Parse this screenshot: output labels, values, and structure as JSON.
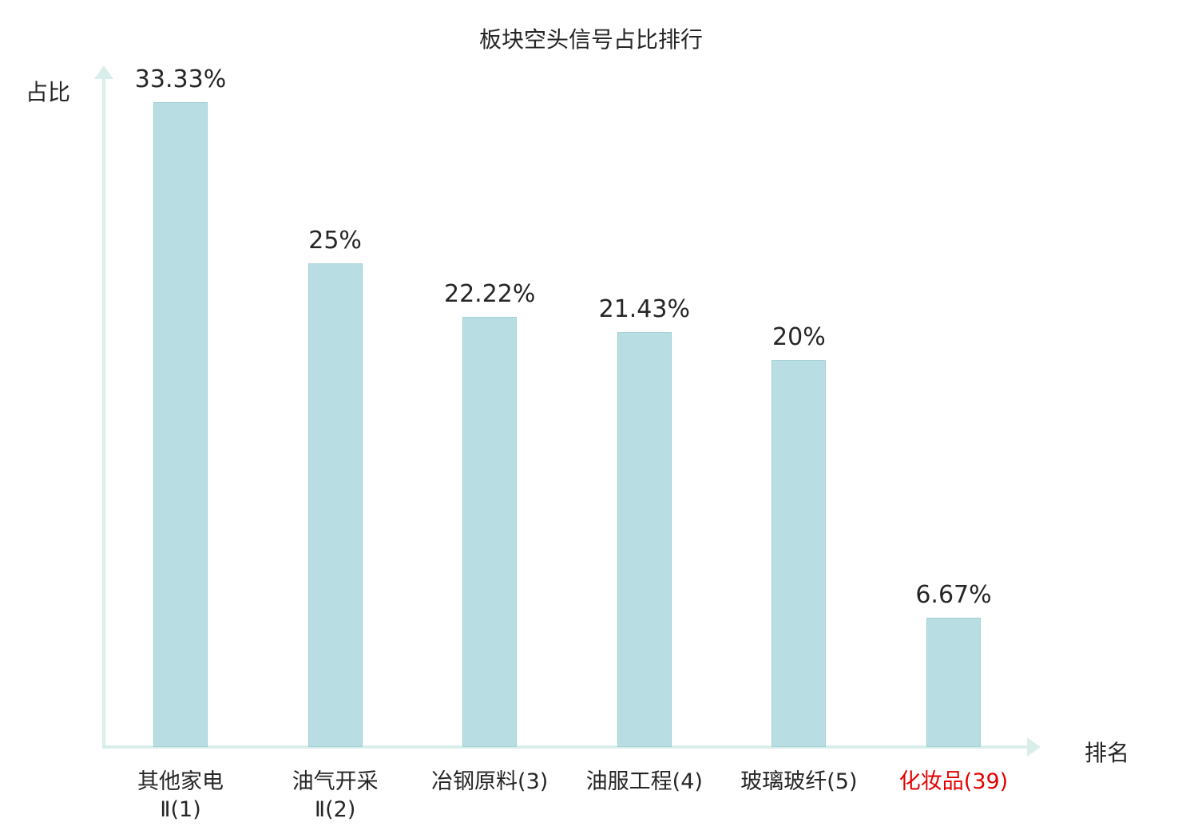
{
  "chart_data": {
    "type": "bar",
    "title": "板块空头信号占比排行",
    "xlabel": "排名",
    "ylabel": "占比",
    "ylim": [
      0,
      33.33
    ],
    "grid": false,
    "legend": "none",
    "categories": [
      "其他家电Ⅱ(1)",
      "油气开采Ⅱ(2)",
      "冶钢原料(3)",
      "油服工程(4)",
      "玻璃玻纤(5)",
      "化妆品(39)"
    ],
    "values": [
      33.33,
      25,
      22.22,
      21.43,
      20,
      6.67
    ],
    "value_labels": [
      "33.33%",
      "25%",
      "22.22%",
      "21.43%",
      "20%",
      "6.67%"
    ],
    "category_label_lines": [
      [
        "其他家电",
        "Ⅱ(1)"
      ],
      [
        "油气开采",
        "Ⅱ(2)"
      ],
      [
        "冶钢原料(3)"
      ],
      [
        "油服工程(4)"
      ],
      [
        "玻璃玻纤(5)"
      ],
      [
        "化妆品(39)"
      ]
    ],
    "highlighted_category_index": 5,
    "colors": {
      "bar": "#b8dee3",
      "bar_border": "#a3d0d7",
      "axis": "#d9eeea",
      "highlight": "#e60000",
      "text": "#262626"
    }
  }
}
